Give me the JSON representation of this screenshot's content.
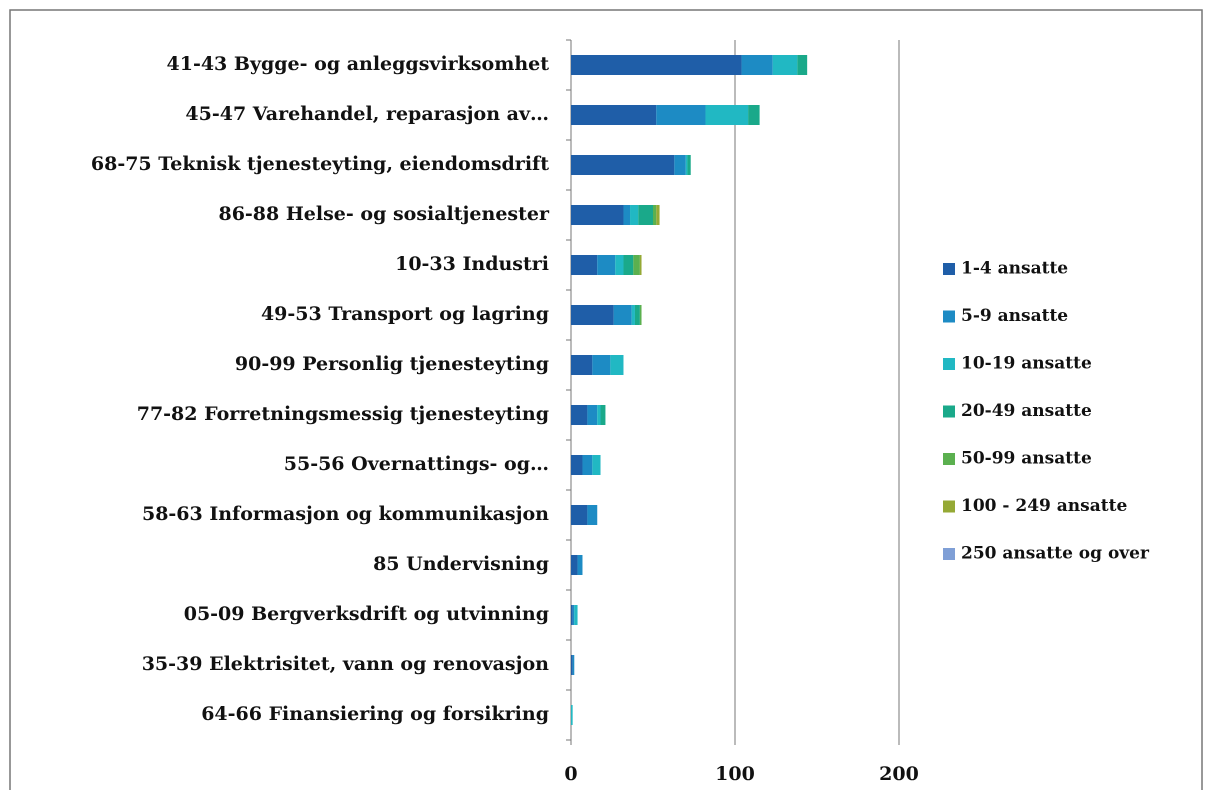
{
  "chart_data": {
    "type": "stacked-barh",
    "categories": [
      "41-43 Bygge- og anleggsvirksomhet",
      "45-47 Varehandel, reparasjon av…",
      "68-75 Teknisk tjenesteyting, eiendomsdrift",
      "86-88 Helse- og sosialtjenester",
      "10-33 Industri",
      "49-53 Transport og lagring",
      "90-99 Personlig tjenesteyting",
      "77-82 Forretningsmessig tjenesteyting",
      "55-56 Overnattings- og…",
      "58-63 Informasjon og kommunikasjon",
      "85 Undervisning",
      "05-09 Bergverksdrift og utvinning",
      "35-39 Elektrisitet, vann og renovasjon",
      "64-66 Finansiering og forsikring"
    ],
    "series": [
      {
        "name": "1-4 ansatte",
        "color": "#1f5ea8",
        "values": [
          104,
          52,
          63,
          32,
          16,
          26,
          13,
          10,
          7,
          10,
          4,
          1,
          1,
          0
        ]
      },
      {
        "name": "5-9 ansatte",
        "color": "#1d8bc4",
        "values": [
          19,
          30,
          7,
          4,
          11,
          11,
          11,
          6,
          6,
          6,
          3,
          1,
          1,
          0
        ]
      },
      {
        "name": "10-19 ansatte",
        "color": "#21b8c3",
        "values": [
          15,
          26,
          1,
          5,
          5,
          2,
          8,
          2,
          5,
          0,
          0,
          2,
          0,
          1
        ]
      },
      {
        "name": "20-49 ansatte",
        "color": "#1aa98a",
        "values": [
          6,
          7,
          2,
          9,
          6,
          3,
          0,
          3,
          0,
          0,
          0,
          0,
          0,
          0
        ]
      },
      {
        "name": "50-99 ansatte",
        "color": "#5bb04f",
        "values": [
          0,
          0,
          0,
          2,
          4,
          1,
          0,
          0,
          0,
          0,
          0,
          0,
          0,
          0
        ]
      },
      {
        "name": "100 - 249 ansatte",
        "color": "#95a935",
        "values": [
          0,
          0,
          0,
          2,
          1,
          0,
          0,
          0,
          0,
          0,
          0,
          0,
          0,
          0
        ]
      },
      {
        "name": "250 ansatte og over",
        "color": "#7f9fd6",
        "values": [
          0,
          0,
          0,
          0,
          0,
          0,
          0,
          0,
          0,
          0,
          0,
          0,
          0,
          0
        ]
      }
    ],
    "xlim": [
      0,
      200
    ],
    "xticks": [
      0,
      100,
      200
    ],
    "grid": true,
    "legend": "right"
  }
}
